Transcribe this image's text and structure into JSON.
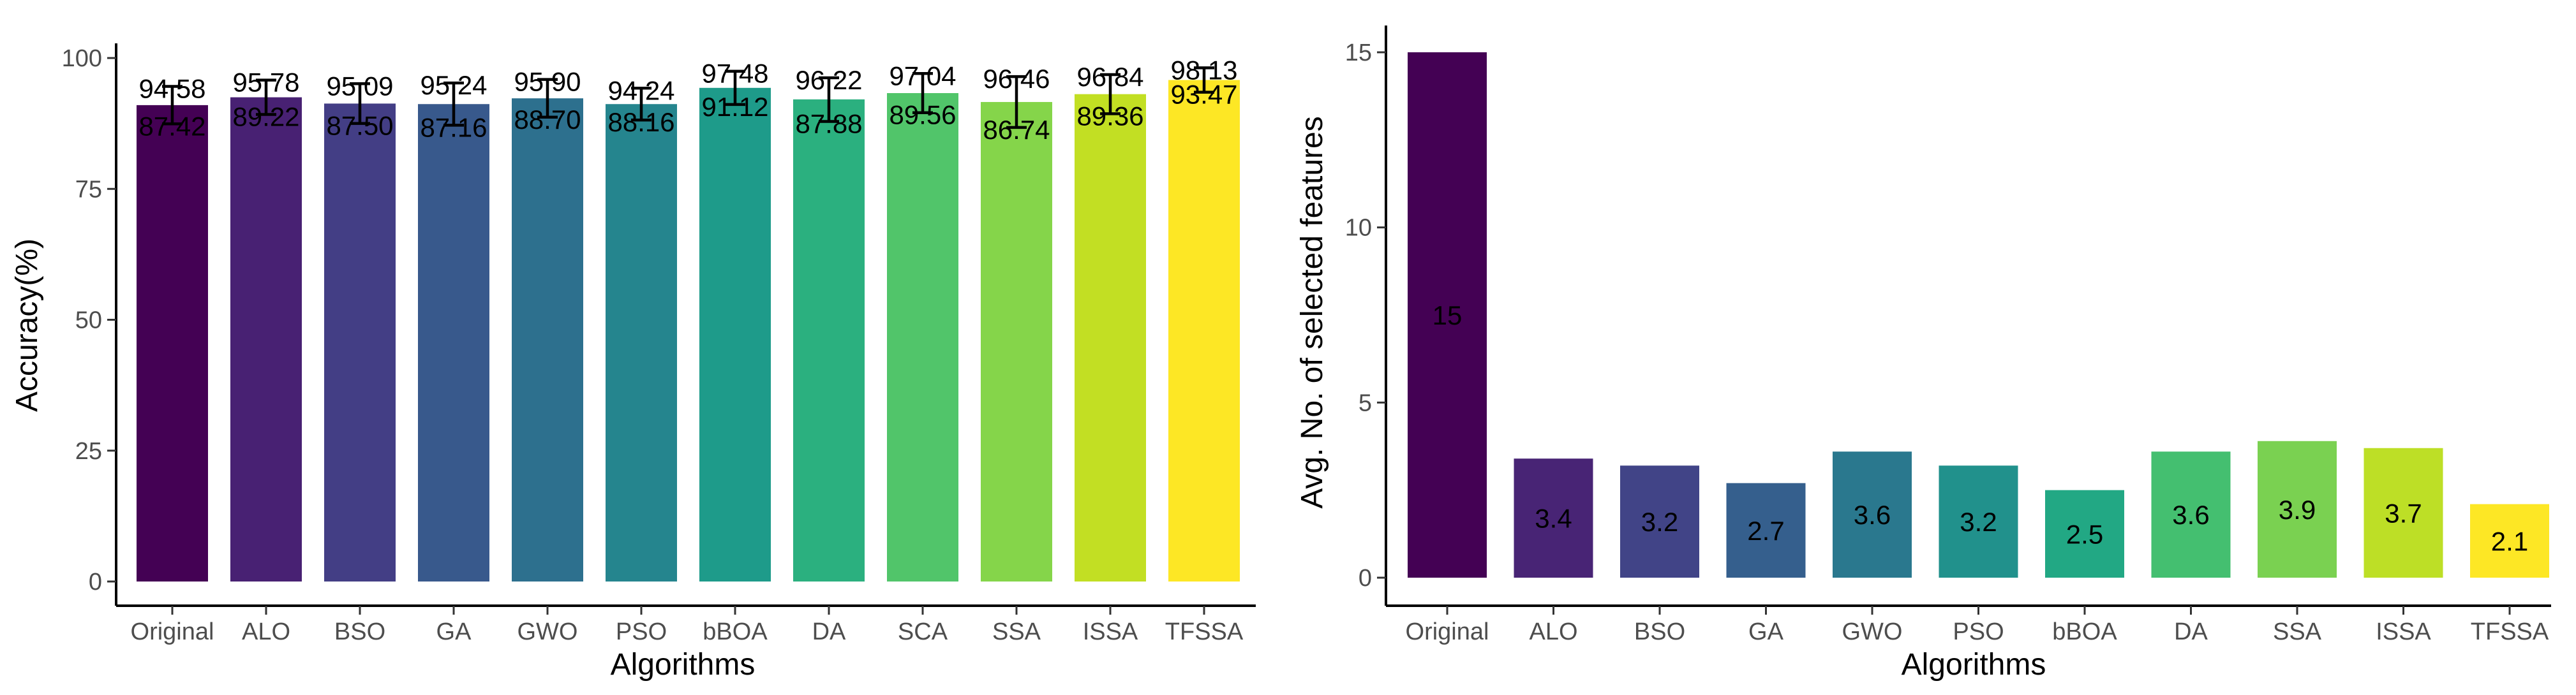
{
  "chart_data": [
    {
      "type": "bar",
      "title": "",
      "xlabel": "Algorithms",
      "ylabel": "Accuracy(%)",
      "ylim": [
        0,
        100
      ],
      "yticks": [
        0,
        25,
        50,
        75,
        100
      ],
      "grid": false,
      "categories": [
        "Original",
        "ALO",
        "BSO",
        "GA",
        "GWO",
        "PSO",
        "bBOA",
        "DA",
        "SCA",
        "SSA",
        "ISSA",
        "TFSSA"
      ],
      "values": [
        91.0,
        92.5,
        91.3,
        91.2,
        92.3,
        91.2,
        94.3,
        92.1,
        93.3,
        91.6,
        93.1,
        95.8
      ],
      "error_upper": [
        94.58,
        95.78,
        95.09,
        95.24,
        95.9,
        94.24,
        97.48,
        96.22,
        97.04,
        96.46,
        96.84,
        98.13
      ],
      "error_lower": [
        87.42,
        89.22,
        87.5,
        87.16,
        88.7,
        88.16,
        91.12,
        87.88,
        89.56,
        86.74,
        89.36,
        93.47
      ],
      "upper_labels": [
        "94.58",
        "95.78",
        "95.09",
        "95.24",
        "95.90",
        "94.24",
        "97.48",
        "96.22",
        "97.04",
        "96.46",
        "96.84",
        "98.13"
      ],
      "lower_labels": [
        "87.42",
        "89.22",
        "87.50",
        "87.16",
        "88.70",
        "88.16",
        "91.12",
        "87.88",
        "89.56",
        "86.74",
        "89.36",
        "93.47"
      ],
      "colors": [
        "#440154",
        "#482173",
        "#433E85",
        "#38598C",
        "#2D708E",
        "#25858E",
        "#1E9B8A",
        "#2BB07F",
        "#51C56A",
        "#85D54A",
        "#C2DF23",
        "#FDE725"
      ]
    },
    {
      "type": "bar",
      "title": "",
      "xlabel": "Algorithms",
      "ylabel": "Avg. No. of selected features",
      "ylim": [
        0,
        16
      ],
      "yticks": [
        0,
        5,
        10,
        15
      ],
      "grid": false,
      "categories": [
        "Original",
        "ALO",
        "BSO",
        "GA",
        "GWO",
        "PSO",
        "bBOA",
        "DA",
        "SSA",
        "ISSA",
        "TFSSA"
      ],
      "values": [
        15,
        3.4,
        3.2,
        2.7,
        3.6,
        3.2,
        2.5,
        3.6,
        3.9,
        3.7,
        2.1
      ],
      "value_labels": [
        "15",
        "3.4",
        "3.2",
        "2.7",
        "3.6",
        "3.2",
        "2.5",
        "3.6",
        "3.9",
        "3.7",
        "2.1"
      ],
      "colors": [
        "#440154",
        "#482475",
        "#414487",
        "#355F8D",
        "#2A788E",
        "#21918C",
        "#22A884",
        "#44BF70",
        "#7AD151",
        "#BDDF26",
        "#FDE725"
      ]
    }
  ]
}
